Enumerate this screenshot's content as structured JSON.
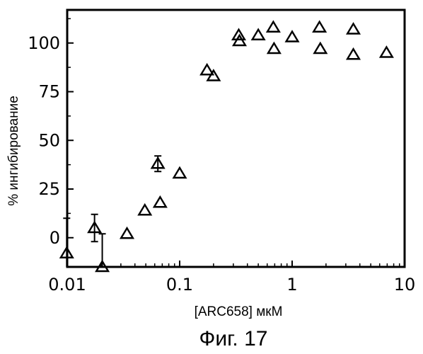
{
  "chart_data": {
    "type": "scatter",
    "title": "",
    "xlabel": "[ARC658] мкМ",
    "ylabel": "% ингибирование",
    "x_scale": "log",
    "xlim": [
      0.01,
      10
    ],
    "ylim": [
      -15,
      117
    ],
    "x_ticks": [
      0.01,
      0.1,
      1,
      10
    ],
    "x_tick_labels": [
      "0.01",
      "0.1",
      "1",
      "10"
    ],
    "y_ticks": [
      0,
      25,
      50,
      75,
      100
    ],
    "y_tick_labels": [
      "0",
      "25",
      "50",
      "75",
      "100"
    ],
    "grid": false,
    "legend": "none",
    "marker": "open-triangle",
    "color": "#000000",
    "points": [
      {
        "x": 0.0099,
        "y": -8,
        "err": 18
      },
      {
        "x": 0.0175,
        "y": 5,
        "err": 7
      },
      {
        "x": 0.0205,
        "y": -15,
        "err": 17
      },
      {
        "x": 0.034,
        "y": 2,
        "err": 0
      },
      {
        "x": 0.049,
        "y": 14,
        "err": 0
      },
      {
        "x": 0.064,
        "y": 38,
        "err": 4
      },
      {
        "x": 0.067,
        "y": 18,
        "err": 0
      },
      {
        "x": 0.1,
        "y": 33,
        "err": 0
      },
      {
        "x": 0.175,
        "y": 86,
        "err": 0
      },
      {
        "x": 0.2,
        "y": 83,
        "err": 0
      },
      {
        "x": 0.335,
        "y": 104,
        "err": 0
      },
      {
        "x": 0.34,
        "y": 101,
        "err": 0
      },
      {
        "x": 0.5,
        "y": 104,
        "err": 0
      },
      {
        "x": 0.68,
        "y": 108,
        "err": 0
      },
      {
        "x": 0.69,
        "y": 97,
        "err": 0
      },
      {
        "x": 1.0,
        "y": 103,
        "err": 0
      },
      {
        "x": 1.75,
        "y": 108,
        "err": 0
      },
      {
        "x": 1.78,
        "y": 97,
        "err": 0
      },
      {
        "x": 3.5,
        "y": 107,
        "err": 0
      },
      {
        "x": 3.5,
        "y": 94,
        "err": 0
      },
      {
        "x": 6.9,
        "y": 95,
        "err": 0
      }
    ]
  },
  "caption": "Фиг. 17"
}
